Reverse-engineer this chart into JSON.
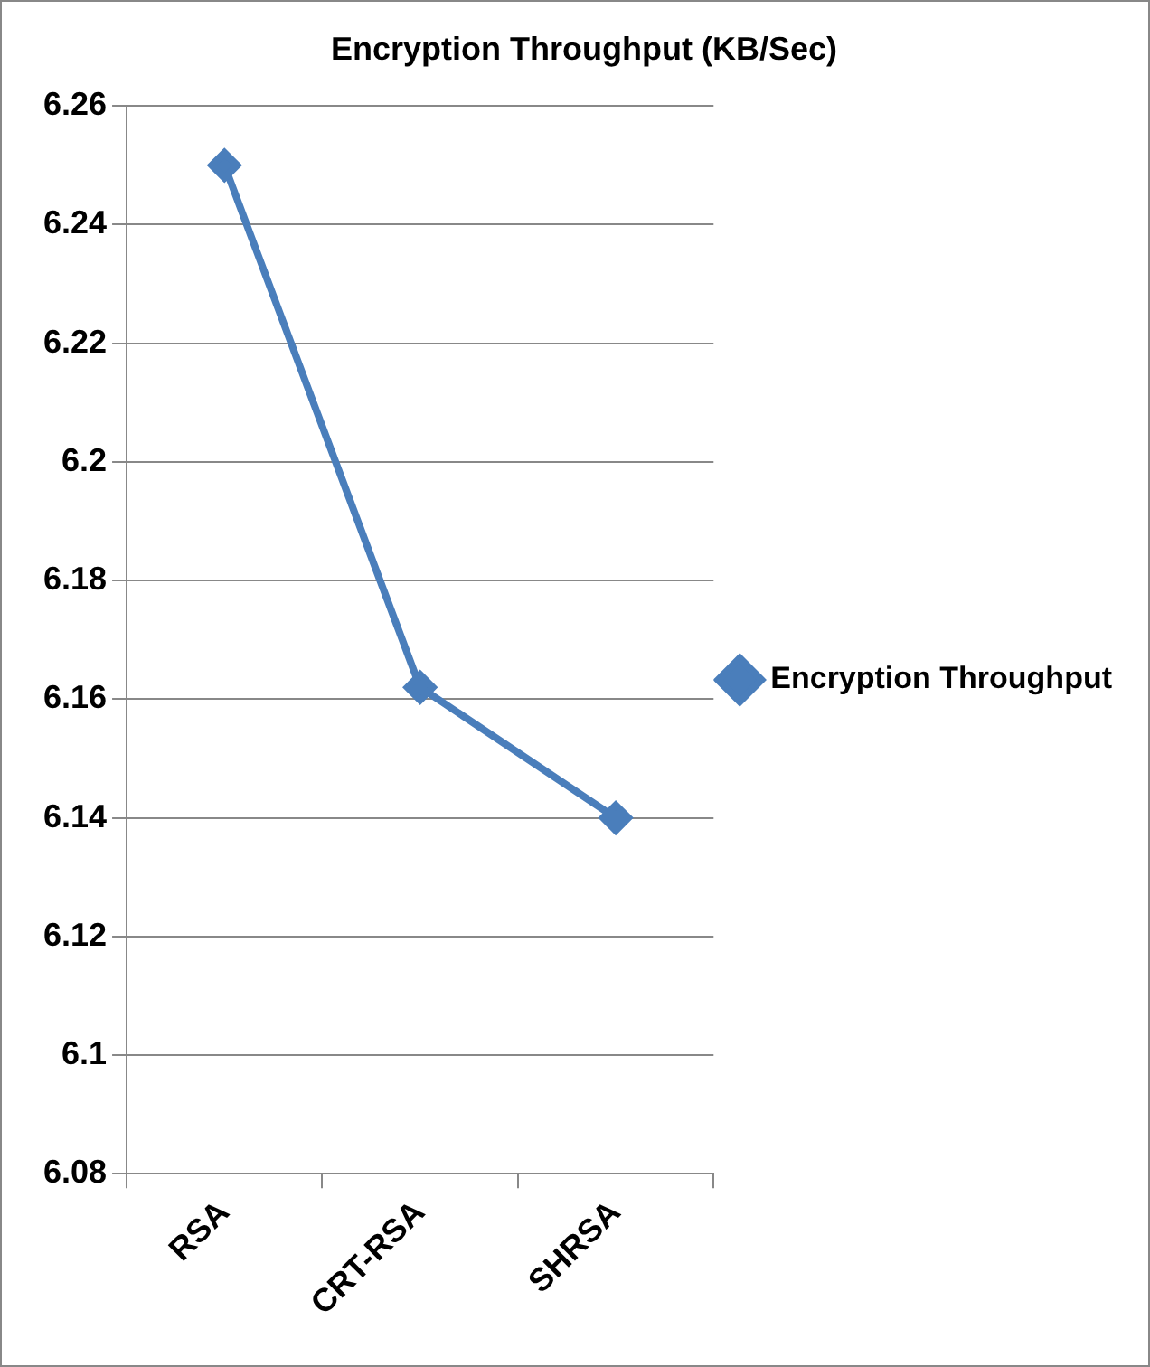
{
  "chart_data": {
    "type": "line",
    "title": "Encryption Throughput (KB/Sec)",
    "categories": [
      "RSA",
      "CRT-RSA",
      "SHRSA"
    ],
    "series": [
      {
        "name": "Encryption Throughput",
        "color": "#4a7ebb",
        "values": [
          6.25,
          6.162,
          6.14
        ]
      }
    ],
    "ylim": [
      6.08,
      6.26
    ],
    "yticks": [
      6.08,
      6.1,
      6.12,
      6.14,
      6.16,
      6.18,
      6.2,
      6.22,
      6.24,
      6.26
    ],
    "grid": "y",
    "legend": "right",
    "marker": "diamond",
    "line_style": "solid"
  }
}
